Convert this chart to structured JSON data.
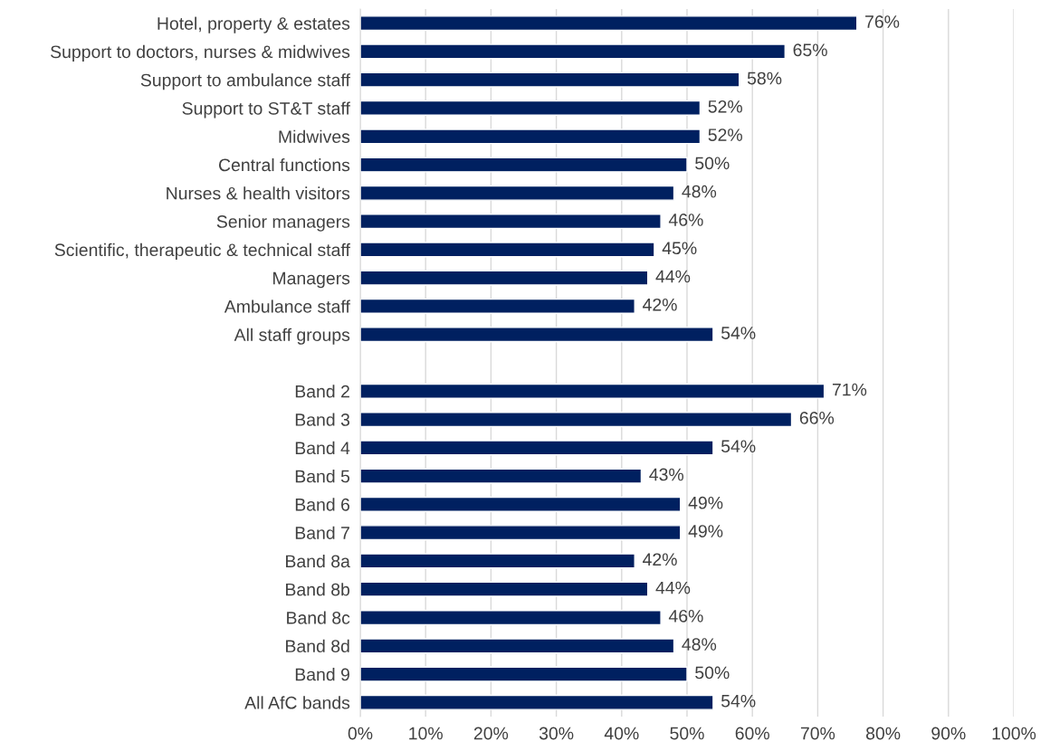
{
  "chart_data": {
    "type": "bar",
    "orientation": "horizontal",
    "categories": [
      "Hotel, property & estates",
      "Support to doctors, nurses & midwives",
      "Support to ambulance staff",
      "Support to ST&T staff",
      "Midwives",
      "Central functions",
      "Nurses & health visitors",
      "Senior managers",
      "Scientific, therapeutic & technical staff",
      "Managers",
      "Ambulance staff",
      "All staff groups",
      null,
      "Band 2",
      "Band 3",
      "Band 4",
      "Band 5",
      "Band 6",
      "Band 7",
      "Band 8a",
      "Band 8b",
      "Band 8c",
      "Band 8d",
      "Band 9",
      "All AfC bands"
    ],
    "values": [
      76,
      65,
      58,
      52,
      52,
      50,
      48,
      46,
      45,
      44,
      42,
      54,
      null,
      71,
      66,
      54,
      43,
      49,
      49,
      42,
      44,
      46,
      48,
      50,
      54
    ],
    "value_labels": [
      "76%",
      "65%",
      "58%",
      "52%",
      "52%",
      "50%",
      "48%",
      "46%",
      "45%",
      "44%",
      "42%",
      "54%",
      null,
      "71%",
      "66%",
      "54%",
      "43%",
      "49%",
      "49%",
      "42%",
      "44%",
      "46%",
      "48%",
      "50%",
      "54%"
    ],
    "color": "#002060",
    "xlim": [
      0,
      100
    ],
    "xticks": [
      {
        "value": 0,
        "label": "0%"
      },
      {
        "value": 10,
        "label": "10%"
      },
      {
        "value": 20,
        "label": "20%"
      },
      {
        "value": 30,
        "label": "30%"
      },
      {
        "value": 40,
        "label": "40%"
      },
      {
        "value": 50,
        "label": "50%"
      },
      {
        "value": 60,
        "label": "60%"
      },
      {
        "value": 70,
        "label": "70%"
      },
      {
        "value": 80,
        "label": "80%"
      },
      {
        "value": 90,
        "label": "90%"
      },
      {
        "value": 100,
        "label": "100%"
      }
    ],
    "grid": "x"
  }
}
